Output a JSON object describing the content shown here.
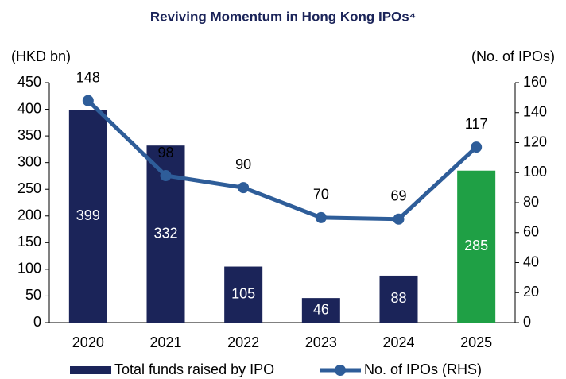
{
  "chart_data": {
    "type": "bar_line",
    "title": "Reviving Momentum in Hong Kong IPOs⁴",
    "y_label": "(HKD bn)",
    "y2_label": "(No. of IPOs)",
    "categories": [
      "2020",
      "2021",
      "2022",
      "2023",
      "2024",
      "2025"
    ],
    "series": [
      {
        "name": "Total funds raised by IPO",
        "type": "bar",
        "color": "#1b2459",
        "colors": [
          "#1b2459",
          "#1b2459",
          "#1b2459",
          "#1b2459",
          "#1b2459",
          "#1fa045"
        ],
        "values": [
          399,
          332,
          105,
          46,
          88,
          285
        ]
      },
      {
        "name": "No. of IPOs (RHS)",
        "type": "line",
        "axis": "y2",
        "color": "#2e5d99",
        "values": [
          148,
          98,
          90,
          70,
          69,
          117
        ]
      }
    ],
    "ylim": [
      0,
      450
    ],
    "yticks": [
      0,
      50,
      100,
      150,
      200,
      250,
      300,
      350,
      400,
      450
    ],
    "y2lim": [
      0,
      160
    ],
    "y2ticks": [
      0,
      20,
      40,
      60,
      80,
      100,
      120,
      140,
      160
    ],
    "grid": false
  }
}
